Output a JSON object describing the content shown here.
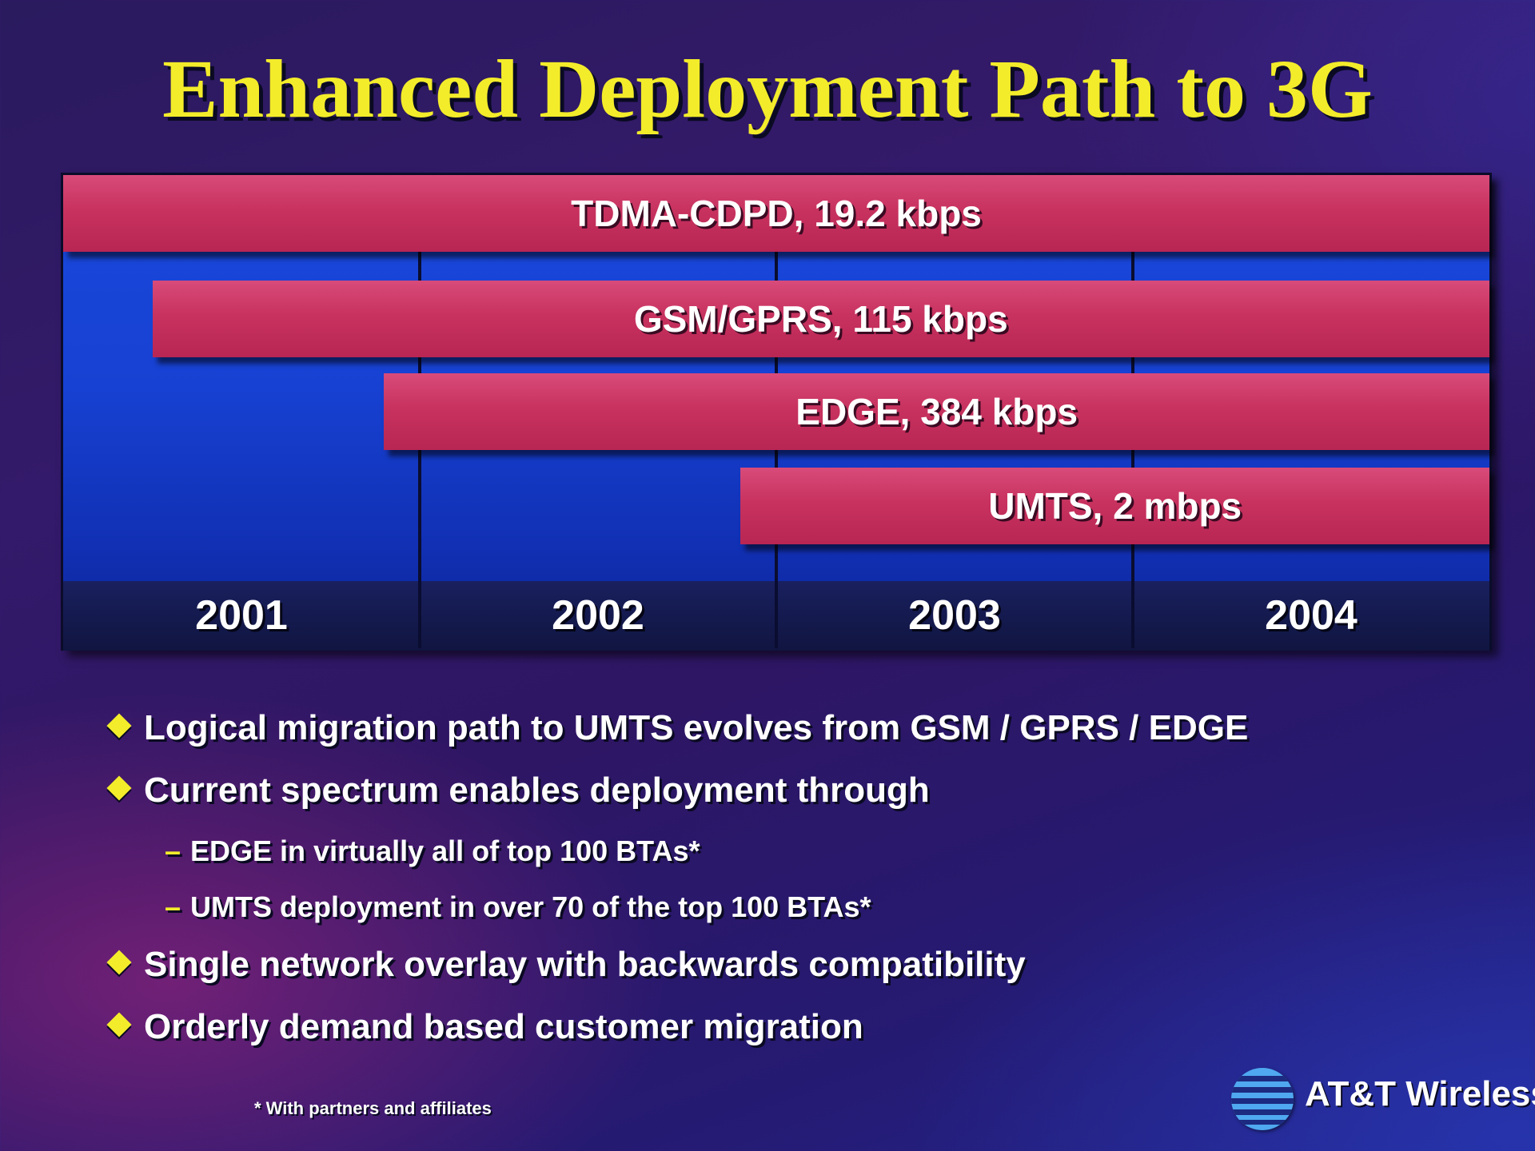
{
  "title": "Enhanced Deployment Path to 3G",
  "chart_data": {
    "type": "bar",
    "orientation": "horizontal-timeline",
    "categories": [
      "2001",
      "2002",
      "2003",
      "2004"
    ],
    "series": [
      {
        "label": "TDMA-CDPD, 19.2 kbps",
        "start": 2001.0,
        "end": 2005.0
      },
      {
        "label": "GSM/GPRS, 115 kbps",
        "start": 2001.25,
        "end": 2005.0
      },
      {
        "label": "EDGE, 384 kbps",
        "start": 2001.9,
        "end": 2005.0
      },
      {
        "label": "UMTS, 2 mbps",
        "start": 2002.9,
        "end": 2005.0
      }
    ],
    "xlim": [
      2001,
      2005
    ],
    "grid": true,
    "colors": {
      "bar": "#c8325f",
      "background": "#1741d2",
      "year_band": "#101540"
    }
  },
  "bullets": [
    {
      "text": "Logical migration path to UMTS evolves from GSM / GPRS / EDGE"
    },
    {
      "text": "Current spectrum enables deployment through",
      "subitems": [
        "EDGE in virtually all of top 100 BTAs*",
        "UMTS deployment in over 70 of the top 100 BTAs*"
      ]
    },
    {
      "text": "Single network overlay with backwards compatibility"
    },
    {
      "text": "Orderly demand based customer migration"
    }
  ],
  "footnote": "* With partners and affiliates",
  "logo": {
    "text": "AT&T Wireless",
    "icon": "att-globe-icon"
  },
  "colors": {
    "title": "#f3ec2a",
    "bullet_marker": "#f3ec2a",
    "text": "#ffffff"
  }
}
